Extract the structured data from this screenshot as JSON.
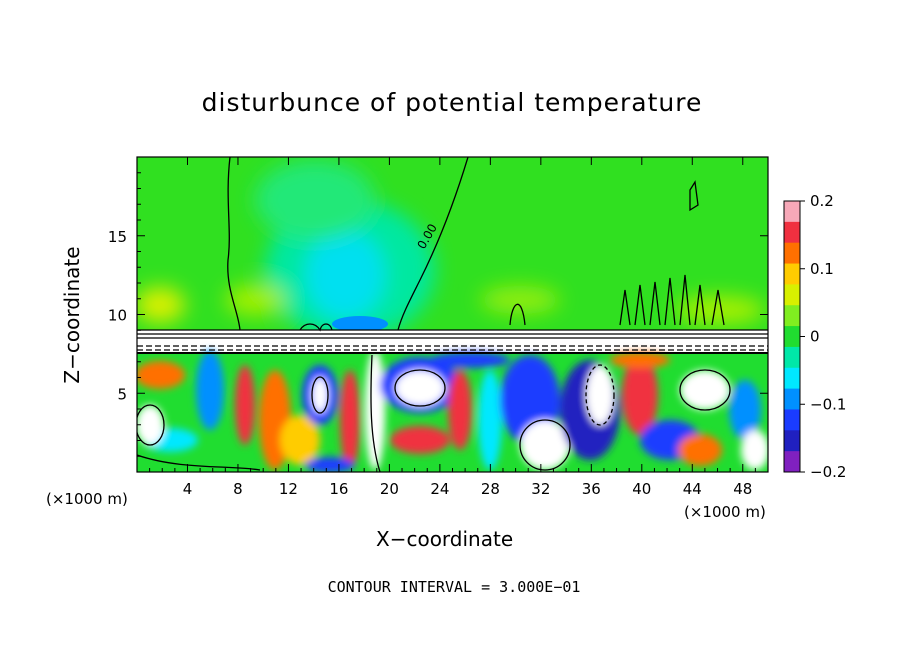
{
  "chart_data": {
    "type": "heatmap",
    "title": "disturbunce of potential temperature",
    "xlabel": "X−coordinate",
    "ylabel": "Z−coordinate",
    "x_unit_left": "(×1000 m)",
    "x_unit_right": "(×1000 m)",
    "xlim": [
      0,
      50
    ],
    "ylim": [
      0,
      20
    ],
    "x_ticks": [
      4,
      8,
      12,
      16,
      20,
      24,
      28,
      32,
      36,
      40,
      44,
      48
    ],
    "x_tick_labels": [
      "4",
      "8",
      "12",
      "16",
      "20",
      "24",
      "28",
      "32",
      "36",
      "40",
      "44",
      "48"
    ],
    "y_ticks": [
      5,
      10,
      15
    ],
    "y_tick_labels": [
      "5",
      "10",
      "15"
    ],
    "colorbar": {
      "range": [
        -0.2,
        0.2
      ],
      "ticks": [
        0.2,
        0.1,
        0,
        -0.1,
        -0.2
      ],
      "tick_labels": [
        "0.2",
        "0.1",
        "0",
        "−0.1",
        "−0.2"
      ],
      "colors": [
        "#f7a8b8",
        "#f03040",
        "#ff7000",
        "#ffcc00",
        "#d8f000",
        "#80ee20",
        "#20dd30",
        "#00e8a8",
        "#00e8ff",
        "#0090ff",
        "#1a3cff",
        "#2020c0",
        "#8020c0"
      ]
    },
    "contour_labels": [
      "0.00"
    ],
    "contour_interval_text": "CONTOUR INTERVAL = 3.000E−01"
  }
}
